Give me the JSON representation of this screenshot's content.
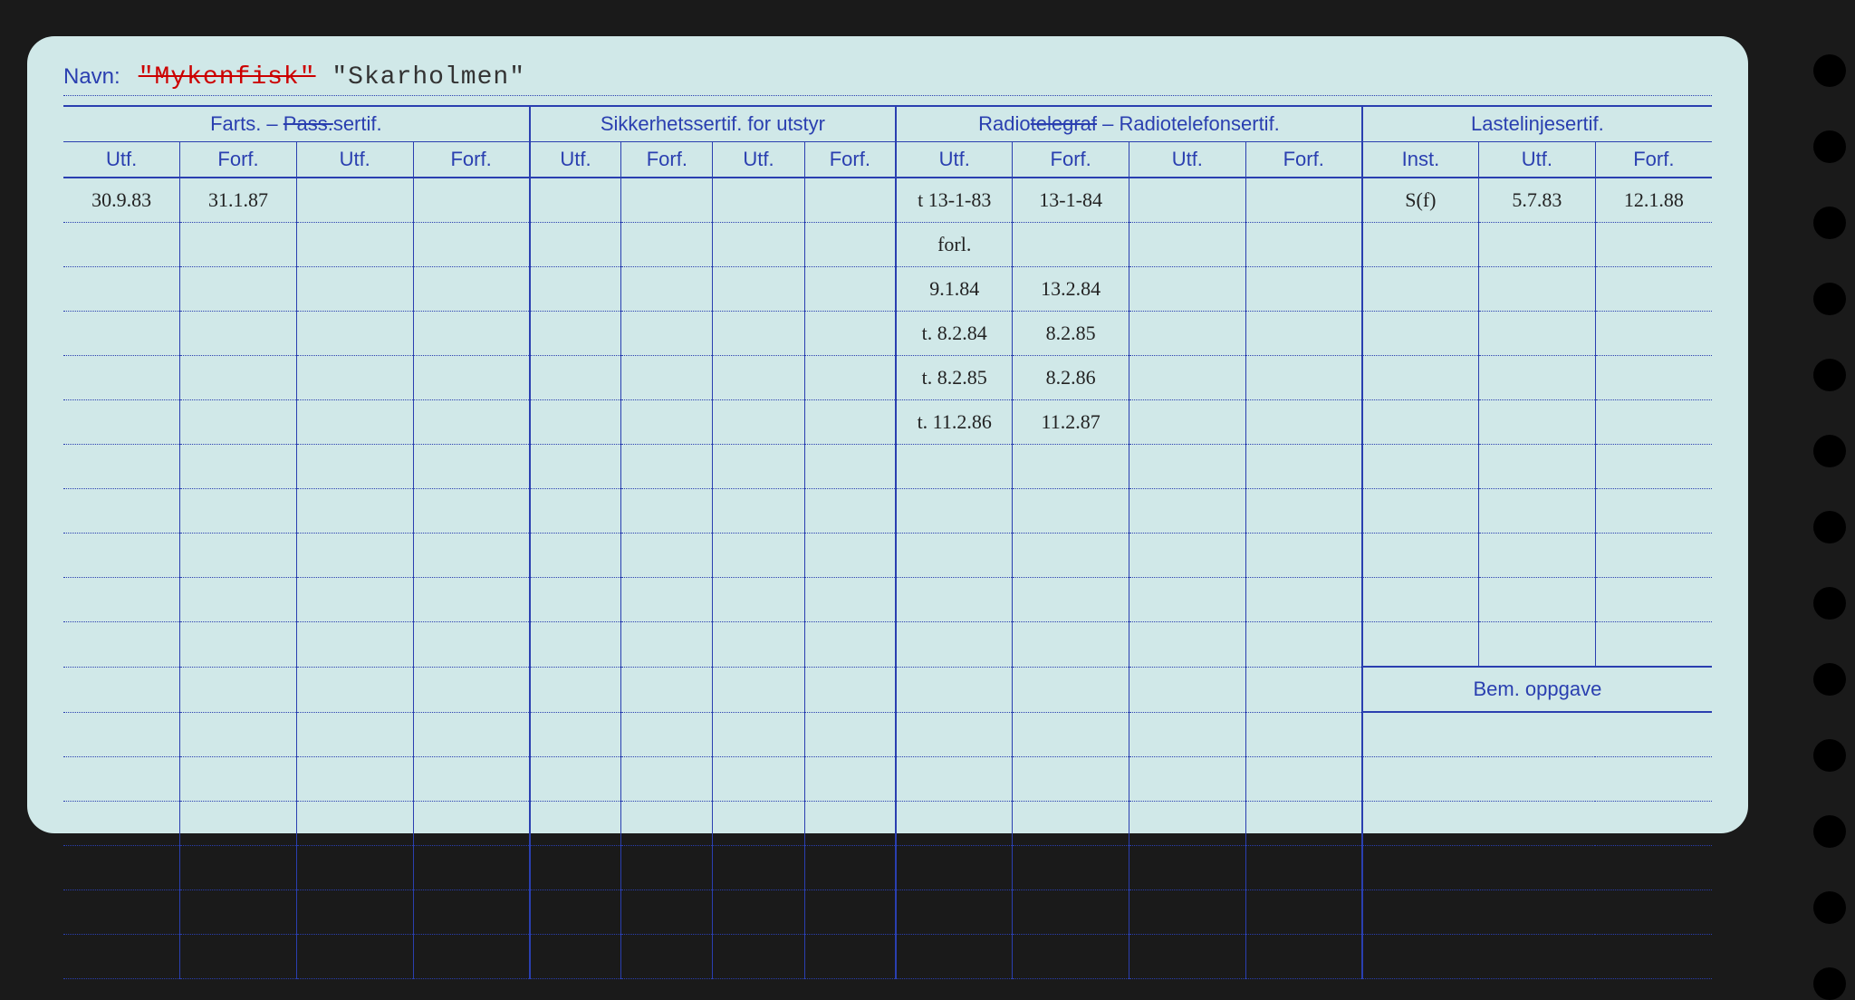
{
  "colors": {
    "card_bg": "#d0e8e8",
    "line": "#2a3fb0",
    "text_header": "#2a3fb0",
    "text_hand": "#222222",
    "strike": "#c00000"
  },
  "navn": {
    "label": "Navn:",
    "struck": "\"Mykenfisk\"",
    "current": "\"Skarholmen\""
  },
  "sections": {
    "farts": {
      "label": "Farts. –",
      "struck": "Pass.",
      "suffix": "sertif."
    },
    "sikkerhet": "Sikkerhetssertif. for utstyr",
    "radio": {
      "pre": "Radio",
      "struck": "telegraf",
      "mid": " – Radiotelefonsertif."
    },
    "laste": "Lastelinjesertif."
  },
  "subheads": {
    "utf": "Utf.",
    "forf": "Forf.",
    "inst": "Inst."
  },
  "bem": "Bem. oppgave",
  "rows": [
    {
      "farts_utf": "30.9.83",
      "farts_forf": "31.1.87",
      "radio_utf1": "t 13-1-83",
      "radio_forf1": "13-1-84",
      "laste_inst": "S(f)",
      "laste_utf": "5.7.83",
      "laste_forf": "12.1.88"
    },
    {
      "radio_utf1": "forl."
    },
    {
      "radio_utf1": "9.1.84",
      "radio_forf1": "13.2.84"
    },
    {
      "radio_utf1": "t. 8.2.84",
      "radio_forf1": "8.2.85"
    },
    {
      "radio_utf1": "t. 8.2.85",
      "radio_forf1": "8.2.86"
    },
    {
      "radio_utf1": "t. 11.2.86",
      "radio_forf1": "11.2.87"
    },
    {},
    {},
    {},
    {},
    {},
    {},
    {},
    {},
    {},
    {},
    {},
    {}
  ],
  "bem_row_index": 11,
  "num_rows": 18,
  "holes": 13
}
